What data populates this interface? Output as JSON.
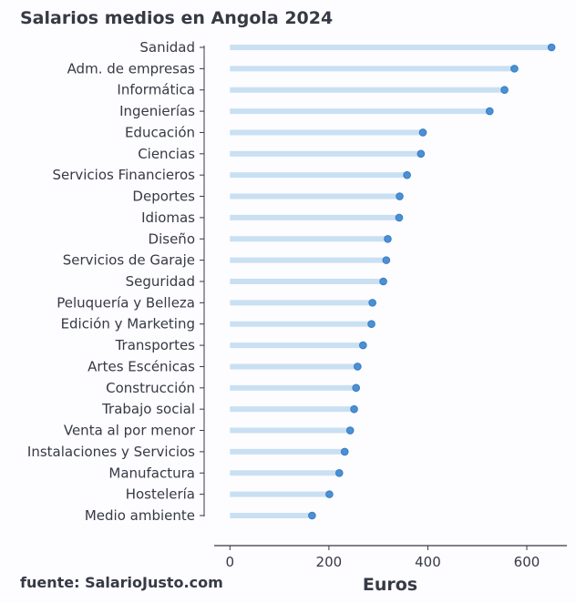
{
  "chart_data": {
    "type": "lollipop",
    "title": "Salarios medios en Angola 2024",
    "xlabel": "Euros",
    "ylabel": "",
    "source": "fuente: SalarioJusto.com",
    "xlim": [
      -30,
      680
    ],
    "xticks": [
      0,
      200,
      400,
      600
    ],
    "grid": false,
    "colors": {
      "stem": "#c9e0f3",
      "dot": "#4a90d6",
      "dot_edge": "#3a7bc0",
      "text": "#363a45"
    },
    "categories": [
      "Sanidad",
      "Adm. de empresas",
      "Informática",
      "Ingenierías",
      "Educación",
      "Ciencias",
      "Servicios Financieros",
      "Deportes",
      "Idiomas",
      "Diseño",
      "Servicios de Garaje",
      "Seguridad",
      "Peluquería y Belleza",
      "Edición y Marketing",
      "Transportes",
      "Artes Escénicas",
      "Construcción",
      "Trabajo social",
      "Venta al por menor",
      "Instalaciones y Servicios",
      "Manufactura",
      "Hostelería",
      "Medio ambiente"
    ],
    "values": [
      650,
      575,
      555,
      525,
      390,
      386,
      358,
      343,
      342,
      319,
      316,
      310,
      288,
      286,
      269,
      258,
      255,
      251,
      243,
      232,
      221,
      201,
      166
    ]
  }
}
